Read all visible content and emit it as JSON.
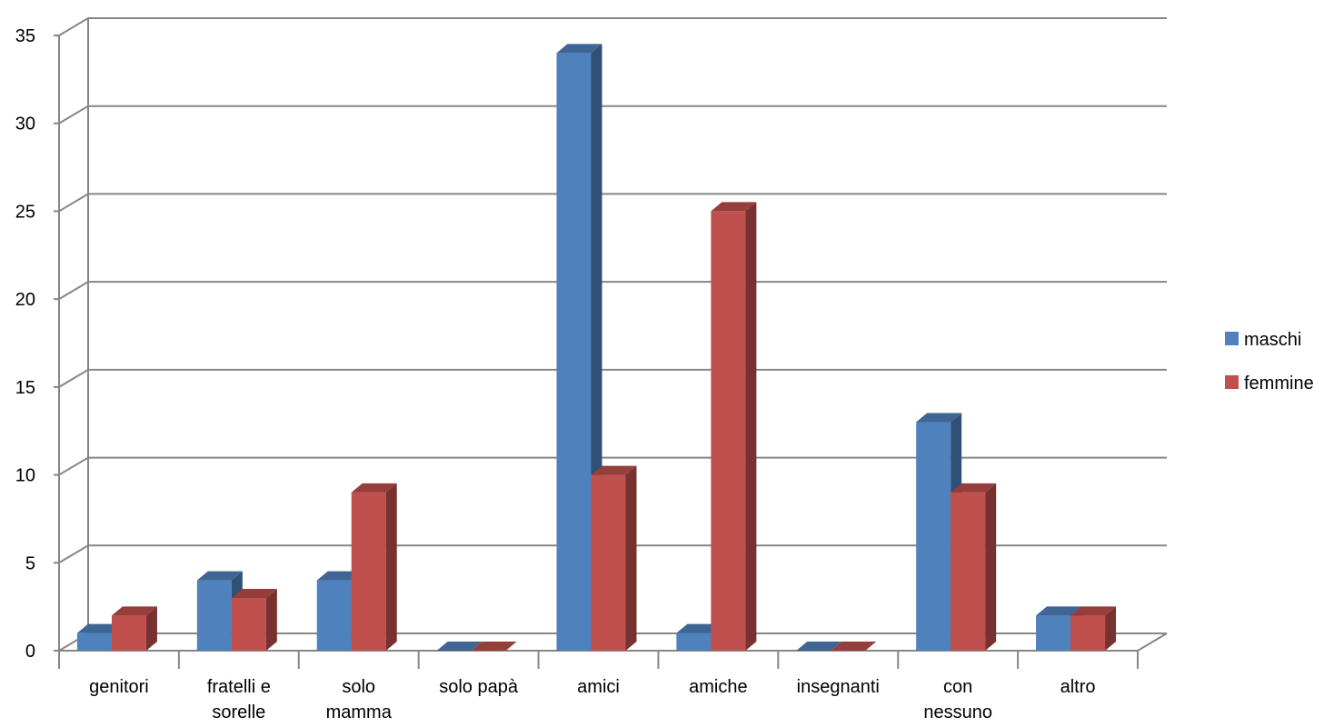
{
  "chart_data": {
    "type": "bar",
    "title": "",
    "xlabel": "",
    "ylabel": "",
    "ylim": [
      0,
      35
    ],
    "yticks": [
      "0",
      "5",
      "10",
      "15",
      "20",
      "25",
      "30",
      "35"
    ],
    "grid": true,
    "three_d": true,
    "legend_position": "right",
    "categories": [
      [
        "genitori"
      ],
      [
        "fratelli e",
        "sorelle"
      ],
      [
        "solo",
        "mamma"
      ],
      [
        "solo papà"
      ],
      [
        "amici"
      ],
      [
        "amiche"
      ],
      [
        "insegnanti"
      ],
      [
        "con",
        "nessuno"
      ],
      [
        "altro"
      ]
    ],
    "series": [
      {
        "name": "maschi",
        "color": "#4F81BD",
        "values": [
          1,
          4,
          4,
          0,
          34,
          1,
          0,
          13,
          2
        ]
      },
      {
        "name": "femmine",
        "color": "#C0504D",
        "values": [
          2,
          3,
          9,
          0,
          10,
          25,
          0,
          9,
          2
        ]
      }
    ]
  }
}
